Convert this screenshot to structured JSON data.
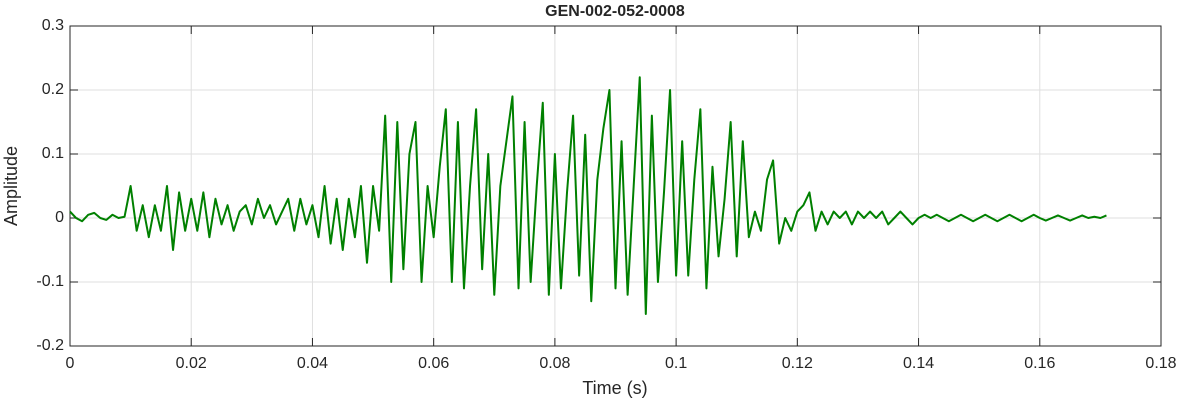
{
  "chart_data": {
    "type": "line",
    "title": "GEN-002-052-0008",
    "xlabel": "Time (s)",
    "ylabel": "Amplitude",
    "color": "#008000",
    "grid": true,
    "xlim": [
      0,
      0.18
    ],
    "xticks": [
      0,
      0.02,
      0.04,
      0.06,
      0.08,
      0.1,
      0.12,
      0.14,
      0.16,
      0.18
    ],
    "ylim": [
      -0.2,
      0.3
    ],
    "yticks": [
      -0.2,
      -0.1,
      0,
      0.1,
      0.2,
      0.3
    ],
    "x": [
      0,
      0.001,
      0.002,
      0.003,
      0.004,
      0.005,
      0.006,
      0.007,
      0.008,
      0.009,
      0.01,
      0.011,
      0.012,
      0.013,
      0.014,
      0.015,
      0.016,
      0.017,
      0.018,
      0.019,
      0.02,
      0.021,
      0.022,
      0.023,
      0.024,
      0.025,
      0.026,
      0.027,
      0.028,
      0.029,
      0.03,
      0.031,
      0.032,
      0.033,
      0.034,
      0.035,
      0.036,
      0.037,
      0.038,
      0.039,
      0.04,
      0.041,
      0.042,
      0.043,
      0.044,
      0.045,
      0.046,
      0.047,
      0.048,
      0.049,
      0.05,
      0.051,
      0.052,
      0.053,
      0.054,
      0.055,
      0.056,
      0.057,
      0.058,
      0.059,
      0.06,
      0.061,
      0.062,
      0.063,
      0.064,
      0.065,
      0.066,
      0.067,
      0.068,
      0.069,
      0.07,
      0.071,
      0.072,
      0.073,
      0.074,
      0.075,
      0.076,
      0.077,
      0.078,
      0.079,
      0.08,
      0.081,
      0.082,
      0.083,
      0.084,
      0.085,
      0.086,
      0.087,
      0.088,
      0.089,
      0.09,
      0.091,
      0.092,
      0.093,
      0.094,
      0.095,
      0.096,
      0.097,
      0.098,
      0.099,
      0.1,
      0.101,
      0.102,
      0.103,
      0.104,
      0.105,
      0.106,
      0.107,
      0.108,
      0.109,
      0.11,
      0.111,
      0.112,
      0.113,
      0.114,
      0.115,
      0.116,
      0.117,
      0.118,
      0.119,
      0.12,
      0.121,
      0.122,
      0.123,
      0.124,
      0.125,
      0.126,
      0.127,
      0.128,
      0.129,
      0.13,
      0.131,
      0.132,
      0.133,
      0.134,
      0.135,
      0.136,
      0.137,
      0.138,
      0.139,
      0.14,
      0.141,
      0.142,
      0.143,
      0.144,
      0.145,
      0.146,
      0.147,
      0.148,
      0.149,
      0.15,
      0.151,
      0.152,
      0.153,
      0.154,
      0.155,
      0.156,
      0.157,
      0.158,
      0.159,
      0.16,
      0.161,
      0.162,
      0.163,
      0.164,
      0.165,
      0.166,
      0.167,
      0.168,
      0.169,
      0.17,
      0.171
    ],
    "values": [
      0.01,
      0,
      -0.005,
      0.005,
      0.008,
      0,
      -0.003,
      0.005,
      0,
      0.002,
      0.05,
      -0.02,
      0.02,
      -0.03,
      0.02,
      -0.02,
      0.05,
      -0.05,
      0.04,
      -0.02,
      0.03,
      -0.02,
      0.04,
      -0.03,
      0.03,
      -0.01,
      0.02,
      -0.02,
      0.01,
      0.02,
      -0.01,
      0.03,
      0,
      0.02,
      -0.01,
      0.01,
      0.03,
      -0.02,
      0.03,
      -0.01,
      0.02,
      -0.03,
      0.05,
      -0.04,
      0.03,
      -0.05,
      0.03,
      -0.03,
      0.05,
      -0.07,
      0.05,
      -0.02,
      0.16,
      -0.1,
      0.15,
      -0.08,
      0.1,
      0.15,
      -0.1,
      0.05,
      -0.03,
      0.08,
      0.17,
      -0.1,
      0.15,
      -0.11,
      0.05,
      0.17,
      -0.08,
      0.1,
      -0.12,
      0.05,
      0.12,
      0.19,
      -0.11,
      0.15,
      -0.1,
      0.05,
      0.18,
      -0.12,
      0.1,
      -0.11,
      0.04,
      0.16,
      -0.09,
      0.13,
      -0.13,
      0.06,
      0.14,
      0.2,
      -0.11,
      0.12,
      -0.12,
      0.05,
      0.22,
      -0.15,
      0.16,
      -0.1,
      0.04,
      0.2,
      -0.09,
      0.12,
      -0.09,
      0.06,
      0.17,
      -0.11,
      0.08,
      -0.06,
      0.03,
      0.15,
      -0.06,
      0.12,
      -0.03,
      0.01,
      -0.02,
      0.06,
      0.09,
      -0.04,
      0,
      -0.02,
      0.01,
      0.02,
      0.04,
      -0.02,
      0.01,
      -0.01,
      0.01,
      0,
      0.01,
      -0.01,
      0.01,
      0,
      0.01,
      0,
      0.01,
      -0.01,
      0,
      0.01,
      0,
      -0.01,
      0,
      0.005,
      0,
      0.005,
      0,
      -0.005,
      0,
      0.005,
      0,
      -0.005,
      0,
      0.005,
      0,
      -0.005,
      0,
      0.005,
      0,
      -0.005,
      0,
      0.005,
      0,
      -0.004,
      0,
      0.004,
      0,
      -0.004,
      0,
      0.004,
      0,
      0.002,
      0,
      0.004
    ]
  }
}
